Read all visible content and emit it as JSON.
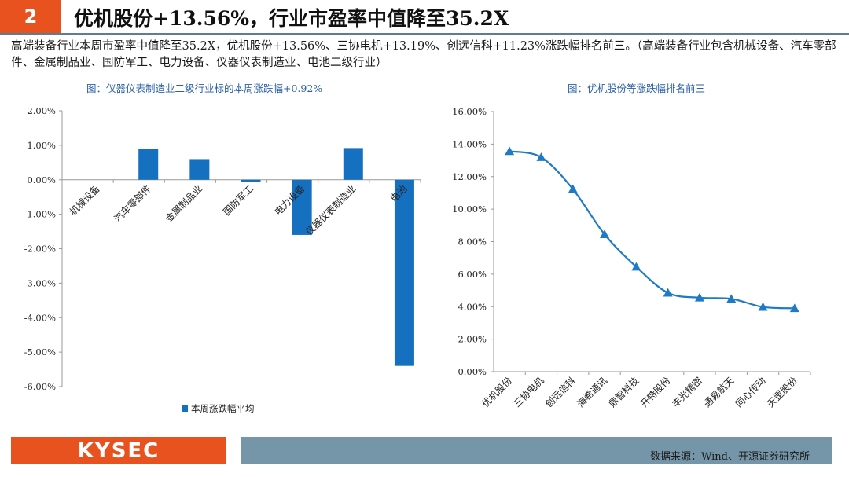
{
  "header": {
    "number": "2",
    "title": "优机股份+13.56%，行业市盈率中值降至35.2X"
  },
  "description": "高端装备行业本周市盈率中值降至35.2X，优机股份+13.56%、三协电机+13.19%、创远信科+11.23%涨跌幅排名前三。（高端装备行业包含机械设备、汽车零部件、金属制品业、国防军工、电力设备、仪器仪表制造业、电池二级行业）",
  "footer": {
    "logo": "KYSEC",
    "source": "数据来源：Wind、开源证券研究所"
  },
  "colors": {
    "accent": "#e8521f",
    "bar": "#1670c0",
    "line": "#1f7ac6",
    "footer_bar": "#7596a8"
  },
  "chart_data": [
    {
      "type": "bar",
      "title": "图：仪器仪表制造业二级行业标的本周涨跌幅+0.92%",
      "categories": [
        "机械设备",
        "汽车零部件",
        "金属制品业",
        "国防军工",
        "电力设备",
        "仪器仪表制造业",
        "电池"
      ],
      "series": [
        {
          "name": "本周涨跌幅平均",
          "values": [
            0.0,
            0.9,
            0.6,
            -0.05,
            -1.6,
            0.92,
            -5.4
          ]
        }
      ],
      "ylim": [
        -6,
        2
      ],
      "yticks": [
        "2.00%",
        "1.00%",
        "0.00%",
        "-1.00%",
        "-2.00%",
        "-3.00%",
        "-4.00%",
        "-5.00%",
        "-6.00%"
      ],
      "legend": "bottom"
    },
    {
      "type": "line",
      "title": "图：优机股份等涨跌幅排名前三",
      "categories": [
        "优机股份",
        "三协电机",
        "创远信科",
        "海希通讯",
        "鼎智科技",
        "开特股份",
        "丰光精密",
        "通易航天",
        "同心传动",
        "天罡股份"
      ],
      "series": [
        {
          "name": "涨跌幅",
          "values": [
            13.56,
            13.19,
            11.23,
            8.45,
            6.45,
            4.85,
            4.55,
            4.48,
            3.98,
            3.9
          ]
        }
      ],
      "ylim": [
        0,
        16
      ],
      "yticks": [
        "0.00%",
        "2.00%",
        "4.00%",
        "6.00%",
        "8.00%",
        "10.00%",
        "12.00%",
        "14.00%",
        "16.00%"
      ]
    }
  ]
}
